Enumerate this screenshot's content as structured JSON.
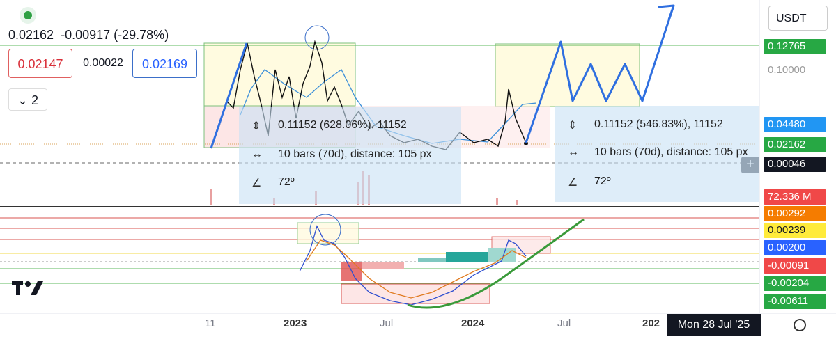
{
  "header": {
    "last_price": "0.02162",
    "change": "-0.00917 (-29.78%)",
    "bid": "0.02147",
    "spread": "0.00022",
    "ask": "0.02169",
    "indicator_count": "2"
  },
  "currency": "USDT",
  "price_axis": [
    "0.12765",
    "0.10000",
    "0.04480",
    "0.02162",
    "0.00046",
    "72.336 M"
  ],
  "indicator_axis": [
    "0.00292",
    "0.00239",
    "0.00200",
    "-0.00091",
    "-0.00204",
    "-0.00611"
  ],
  "time_axis": [
    "11",
    "2023",
    "Jul",
    "2024",
    "Jul",
    "202"
  ],
  "crosshair_time": "Mon 28 Jul '25",
  "measures": [
    {
      "range": "0.11152 (628.06%), 11152",
      "bars": "10 bars (70d), distance: 105 px",
      "angle": "72º"
    },
    {
      "range": "0.11152 (546.83%), 11152",
      "bars": "10 bars (70d), distance: 105 px",
      "angle": "72º"
    }
  ]
}
